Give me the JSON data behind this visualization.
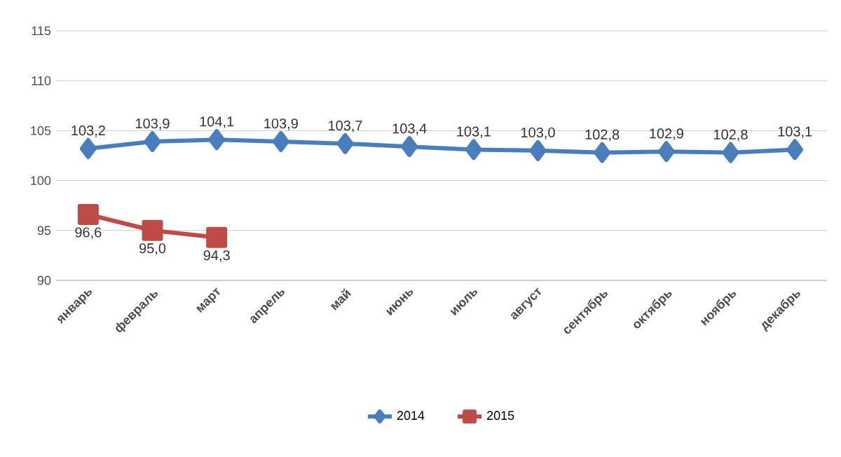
{
  "chart_data": {
    "type": "line",
    "categories": [
      "январь",
      "февраль",
      "март",
      "апрель",
      "май",
      "июнь",
      "июль",
      "август",
      "сентябрь",
      "октябрь",
      "ноябрь",
      "декабрь"
    ],
    "series": [
      {
        "name": "2014",
        "color": "#4a7ebb",
        "marker": "diamond",
        "values": [
          103.2,
          103.9,
          104.1,
          103.9,
          103.7,
          103.4,
          103.1,
          103.0,
          102.8,
          102.9,
          102.8,
          103.1
        ],
        "value_labels": [
          "103,2",
          "103,9",
          "104,1",
          "103,9",
          "103,7",
          "103,4",
          "103,1",
          "103,0",
          "102,8",
          "102,9",
          "102,8",
          "103,1"
        ]
      },
      {
        "name": "2015",
        "color": "#be4b48",
        "marker": "square",
        "values": [
          96.6,
          95.0,
          94.3,
          null,
          null,
          null,
          null,
          null,
          null,
          null,
          null,
          null
        ],
        "value_labels": [
          "96,6",
          "95,0",
          "94,3",
          null,
          null,
          null,
          null,
          null,
          null,
          null,
          null,
          null
        ]
      }
    ],
    "ylim": [
      90,
      115
    ],
    "yticks": [
      90,
      95,
      100,
      105,
      110,
      115
    ],
    "grid": "y",
    "legend": "bottom",
    "line_style": "solid"
  }
}
